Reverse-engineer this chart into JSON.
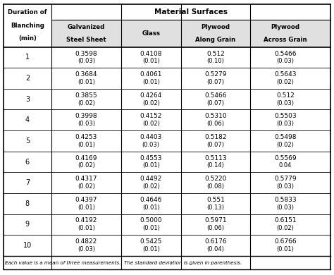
{
  "title_top": "Material Surfaces",
  "col_headers": [
    [
      "Galvanized",
      "Steel Sheet"
    ],
    [
      "Glass",
      ""
    ],
    [
      "Plywood",
      "Along Grain"
    ],
    [
      "Plywood",
      "Across Grain"
    ]
  ],
  "rows": [
    {
      "min": 1,
      "galvanized": [
        "0.3598",
        "(0.03)"
      ],
      "glass": [
        "0.4108",
        "(0.01)"
      ],
      "plywood_along": [
        "0.512",
        "(0.10)"
      ],
      "plywood_across": [
        "0.5466",
        "(0.03)"
      ]
    },
    {
      "min": 2,
      "galvanized": [
        "0.3684",
        "(0.01)"
      ],
      "glass": [
        "0.4061",
        "(0.01)"
      ],
      "plywood_along": [
        "0.5279",
        "(0.07)"
      ],
      "plywood_across": [
        "0.5643",
        "(0.02)"
      ]
    },
    {
      "min": 3,
      "galvanized": [
        "0.3855",
        "(0.02)"
      ],
      "glass": [
        "0.4264",
        "(0.02)"
      ],
      "plywood_along": [
        "0.5466",
        "(0.07)"
      ],
      "plywood_across": [
        "0.512",
        "(0.03)"
      ]
    },
    {
      "min": 4,
      "galvanized": [
        "0.3998",
        "(0.03)"
      ],
      "glass": [
        "0.4152",
        "(0.02)"
      ],
      "plywood_along": [
        "0.5310",
        "(0.06)"
      ],
      "plywood_across": [
        "0.5503",
        "(0.03)"
      ]
    },
    {
      "min": 5,
      "galvanized": [
        "0.4253",
        "(0.01)"
      ],
      "glass": [
        "0.4403",
        "(0.03)"
      ],
      "plywood_along": [
        "0.5182",
        "(0.07)"
      ],
      "plywood_across": [
        "0.5498",
        "(0.02)"
      ]
    },
    {
      "min": 6,
      "galvanized": [
        "0.4169",
        "(0.02)"
      ],
      "glass": [
        "0.4553",
        "(0.01)"
      ],
      "plywood_along": [
        "0.5113",
        "(0.14)"
      ],
      "plywood_across": [
        "0.5569",
        "0.04"
      ]
    },
    {
      "min": 7,
      "galvanized": [
        "0.4317",
        "(0.02)"
      ],
      "glass": [
        "0.4492",
        "(0.02)"
      ],
      "plywood_along": [
        "0.5220",
        "(0.08)"
      ],
      "plywood_across": [
        "0.5779",
        "(0.03)"
      ]
    },
    {
      "min": 8,
      "galvanized": [
        "0.4397",
        "(0.01)"
      ],
      "glass": [
        "0.4646",
        "(0.01)"
      ],
      "plywood_along": [
        "0.551",
        "(0.13)"
      ],
      "plywood_across": [
        "0.5833",
        "(0.03)"
      ]
    },
    {
      "min": 9,
      "galvanized": [
        "0.4192",
        "(0.01)"
      ],
      "glass": [
        "0.5000",
        "(0.01)"
      ],
      "plywood_along": [
        "0.5971",
        "(0.06)"
      ],
      "plywood_across": [
        "0.6151",
        "(0.02)"
      ]
    },
    {
      "min": 10,
      "galvanized": [
        "0.4822",
        "(0.03)"
      ],
      "glass": [
        "0.5425",
        "(0.01)"
      ],
      "plywood_along": [
        "0.6176",
        "(0.04)"
      ],
      "plywood_across": [
        "0.6766",
        "(0.01)"
      ]
    }
  ],
  "footnote": "Each value is a mean of three measurements.  The standard deviation is given in parenthesis.",
  "bg_color": "#ffffff",
  "line_color": "#000000",
  "text_color": "#000000"
}
